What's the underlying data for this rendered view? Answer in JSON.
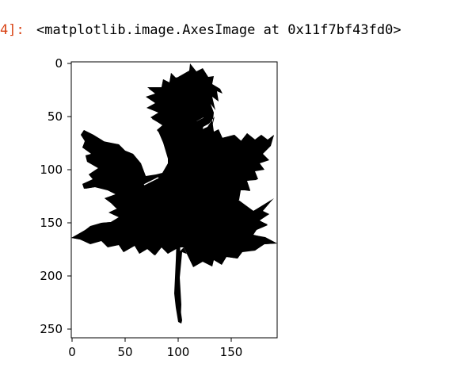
{
  "output": {
    "prompt_fragment": "4]:",
    "repr": "<matplotlib.image.AxesImage at 0x11f7bf43fd0>"
  },
  "chart_data": {
    "type": "image",
    "content": "black silhouette of a maple leaf on white background",
    "x_ticks": [
      0,
      50,
      100,
      150
    ],
    "y_ticks": [
      0,
      50,
      100,
      150,
      200,
      250
    ],
    "xlim": [
      0,
      195
    ],
    "ylim": [
      258,
      0
    ],
    "colors": {
      "leaf": "#000000",
      "background": "#ffffff",
      "axes": "#000000"
    }
  }
}
